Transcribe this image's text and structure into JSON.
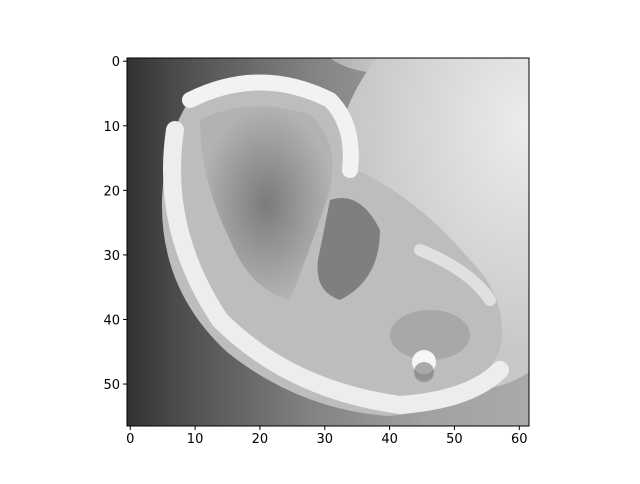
{
  "chart_data": {
    "type": "image",
    "xlim": [
      -0.5,
      61.5
    ],
    "ylim": [
      56.5,
      -0.5
    ],
    "xticks": [
      0,
      10,
      20,
      30,
      40,
      50,
      60
    ],
    "yticks": [
      0,
      10,
      20,
      30,
      40,
      50
    ],
    "colormap": "gray"
  }
}
